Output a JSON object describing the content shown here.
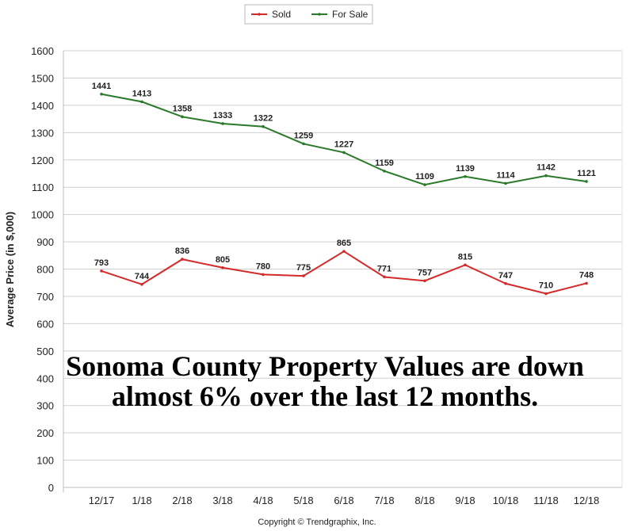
{
  "chart_data": {
    "type": "line",
    "title": "",
    "xlabel": "",
    "ylabel": "Average Price (in $,000)",
    "categories": [
      "12/17",
      "1/18",
      "2/18",
      "3/18",
      "4/18",
      "5/18",
      "6/18",
      "7/18",
      "8/18",
      "9/18",
      "10/18",
      "11/18",
      "12/18"
    ],
    "ylim": [
      0,
      1600
    ],
    "yticks": [
      0,
      100,
      200,
      300,
      400,
      500,
      600,
      700,
      800,
      900,
      1000,
      1100,
      1200,
      1300,
      1400,
      1500,
      1600
    ],
    "grid": true,
    "legend_position": "top-center",
    "series": [
      {
        "name": "Sold",
        "color": "#d42a2a",
        "values": [
          793,
          744,
          836,
          805,
          780,
          775,
          865,
          771,
          757,
          815,
          747,
          710,
          748
        ]
      },
      {
        "name": "For Sale",
        "color": "#2a7a2a",
        "values": [
          1441,
          1413,
          1358,
          1333,
          1322,
          1259,
          1227,
          1159,
          1109,
          1139,
          1114,
          1142,
          1121
        ]
      }
    ]
  },
  "annotation": {
    "line1": "Sonoma County Property Values are down",
    "line2": "almost 6% over the last 12 months."
  },
  "footer": {
    "copyright": "Copyright © Trendgraphix, Inc."
  }
}
